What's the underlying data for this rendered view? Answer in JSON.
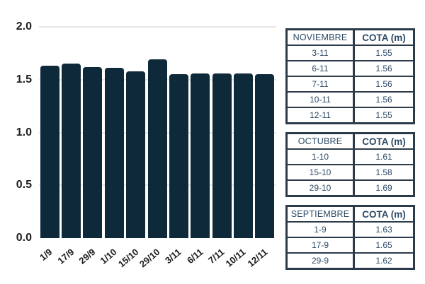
{
  "chart_data": {
    "type": "bar",
    "categories": [
      "1/9",
      "17/9",
      "29/9",
      "1/10",
      "15/10",
      "29/10",
      "3/11",
      "6/11",
      "7/11",
      "10/11",
      "12/11"
    ],
    "values": [
      1.63,
      1.65,
      1.62,
      1.61,
      1.58,
      1.69,
      1.55,
      1.56,
      1.56,
      1.56,
      1.55
    ],
    "title": "",
    "xlabel": "",
    "ylabel": "",
    "ylim": [
      0,
      2.0
    ],
    "yticks": [
      0.0,
      0.5,
      1.0,
      1.5,
      2.0
    ],
    "ytick_labels": [
      "0.0",
      "0.5",
      "1.0",
      "1.5",
      "2.0"
    ],
    "grid": true,
    "legend": "none",
    "bar_color": "#0e2939",
    "gridline_color": "#e6e6e6",
    "axis_text_color": "#1d1d1d"
  },
  "tables": [
    {
      "title": "NOVIEMBRE",
      "value_header": "COTA (m)",
      "rows": [
        {
          "date": "3-11",
          "cota": "1.55"
        },
        {
          "date": "6-11",
          "cota": "1.56"
        },
        {
          "date": "7-11",
          "cota": "1.56"
        },
        {
          "date": "10-11",
          "cota": "1.56"
        },
        {
          "date": "12-11",
          "cota": "1.55"
        }
      ]
    },
    {
      "title": "OCTUBRE",
      "value_header": "COTA (m)",
      "rows": [
        {
          "date": "1-10",
          "cota": "1.61"
        },
        {
          "date": "15-10",
          "cota": "1.58"
        },
        {
          "date": "29-10",
          "cota": "1.69"
        }
      ]
    },
    {
      "title": "SEPTIEMBRE",
      "value_header": "COTA (m)",
      "rows": [
        {
          "date": "1-9",
          "cota": "1.63"
        },
        {
          "date": "17-9",
          "cota": "1.65"
        },
        {
          "date": "29-9",
          "cota": "1.62"
        }
      ]
    }
  ],
  "colors": {
    "table_border": "#2c3b49",
    "table_text": "#2d4a66"
  }
}
